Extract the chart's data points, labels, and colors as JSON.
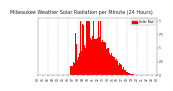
{
  "title": "Milwaukee Weather Solar Radiation per Minute (24 Hours)",
  "bar_color": "#ff0000",
  "background_color": "#ffffff",
  "grid_color": "#aaaaaa",
  "ylim": [
    0,
    1.05
  ],
  "legend_label": "Solar Rad.",
  "legend_color": "#ff0000",
  "num_bars": 1440,
  "title_fontsize": 3.5,
  "tick_fontsize": 2.2,
  "sunrise_min": 390,
  "sunset_min": 1170,
  "peak_min": 700,
  "sigma": 170
}
